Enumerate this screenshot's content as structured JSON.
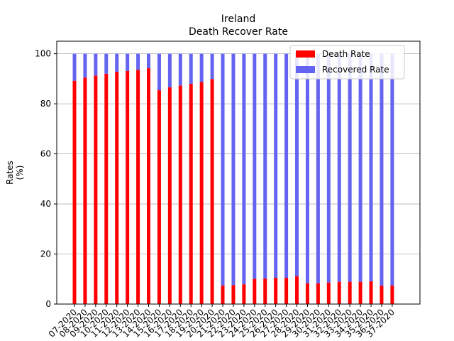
{
  "chart_data": {
    "type": "bar",
    "stacked": true,
    "title": "Ireland",
    "subtitle": "Death Recover Rate",
    "xlabel": "",
    "ylabel": "Rates\n(%)",
    "ylim": [
      0,
      105
    ],
    "yticks": [
      0,
      20,
      40,
      60,
      80,
      100
    ],
    "grid": "horizontal",
    "legend_position": "top-right",
    "categories": [
      "07-2020",
      "08-2020",
      "09-2020",
      "10-2020",
      "11-2020",
      "12-2020",
      "13-2020",
      "14-2020",
      "15-2020",
      "16-2020",
      "17-2020",
      "18-2020",
      "19-2020",
      "20-2020",
      "21-2020",
      "22-2020",
      "23-2020",
      "24-2020",
      "25-2020",
      "26-2020",
      "27-2020",
      "28-2020",
      "29-2020",
      "30-2020",
      "31-2020",
      "32-2020",
      "33-2020",
      "34-2020",
      "35-2020",
      "36-2020",
      "37-2020"
    ],
    "series": [
      {
        "name": "Death Rate",
        "color": "#ff0000",
        "values": [
          89.2,
          90.5,
          91.3,
          92.0,
          92.8,
          93.1,
          93.6,
          94.2,
          85.4,
          86.6,
          87.3,
          88.0,
          88.7,
          89.9,
          7.4,
          7.6,
          7.9,
          10.1,
          10.2,
          10.5,
          10.5,
          11.1,
          8.3,
          8.3,
          8.6,
          8.9,
          8.9,
          8.9,
          9.1,
          7.4,
          7.4
        ]
      },
      {
        "name": "Recovered Rate",
        "color": "#6464f0",
        "values": [
          10.8,
          9.5,
          8.7,
          8.0,
          7.2,
          6.9,
          6.4,
          5.8,
          14.6,
          13.4,
          12.7,
          12.0,
          11.3,
          10.1,
          92.6,
          92.4,
          92.1,
          89.9,
          89.8,
          89.5,
          89.5,
          88.9,
          91.7,
          91.7,
          91.4,
          91.1,
          91.1,
          91.1,
          90.9,
          92.6,
          92.6
        ]
      }
    ]
  }
}
